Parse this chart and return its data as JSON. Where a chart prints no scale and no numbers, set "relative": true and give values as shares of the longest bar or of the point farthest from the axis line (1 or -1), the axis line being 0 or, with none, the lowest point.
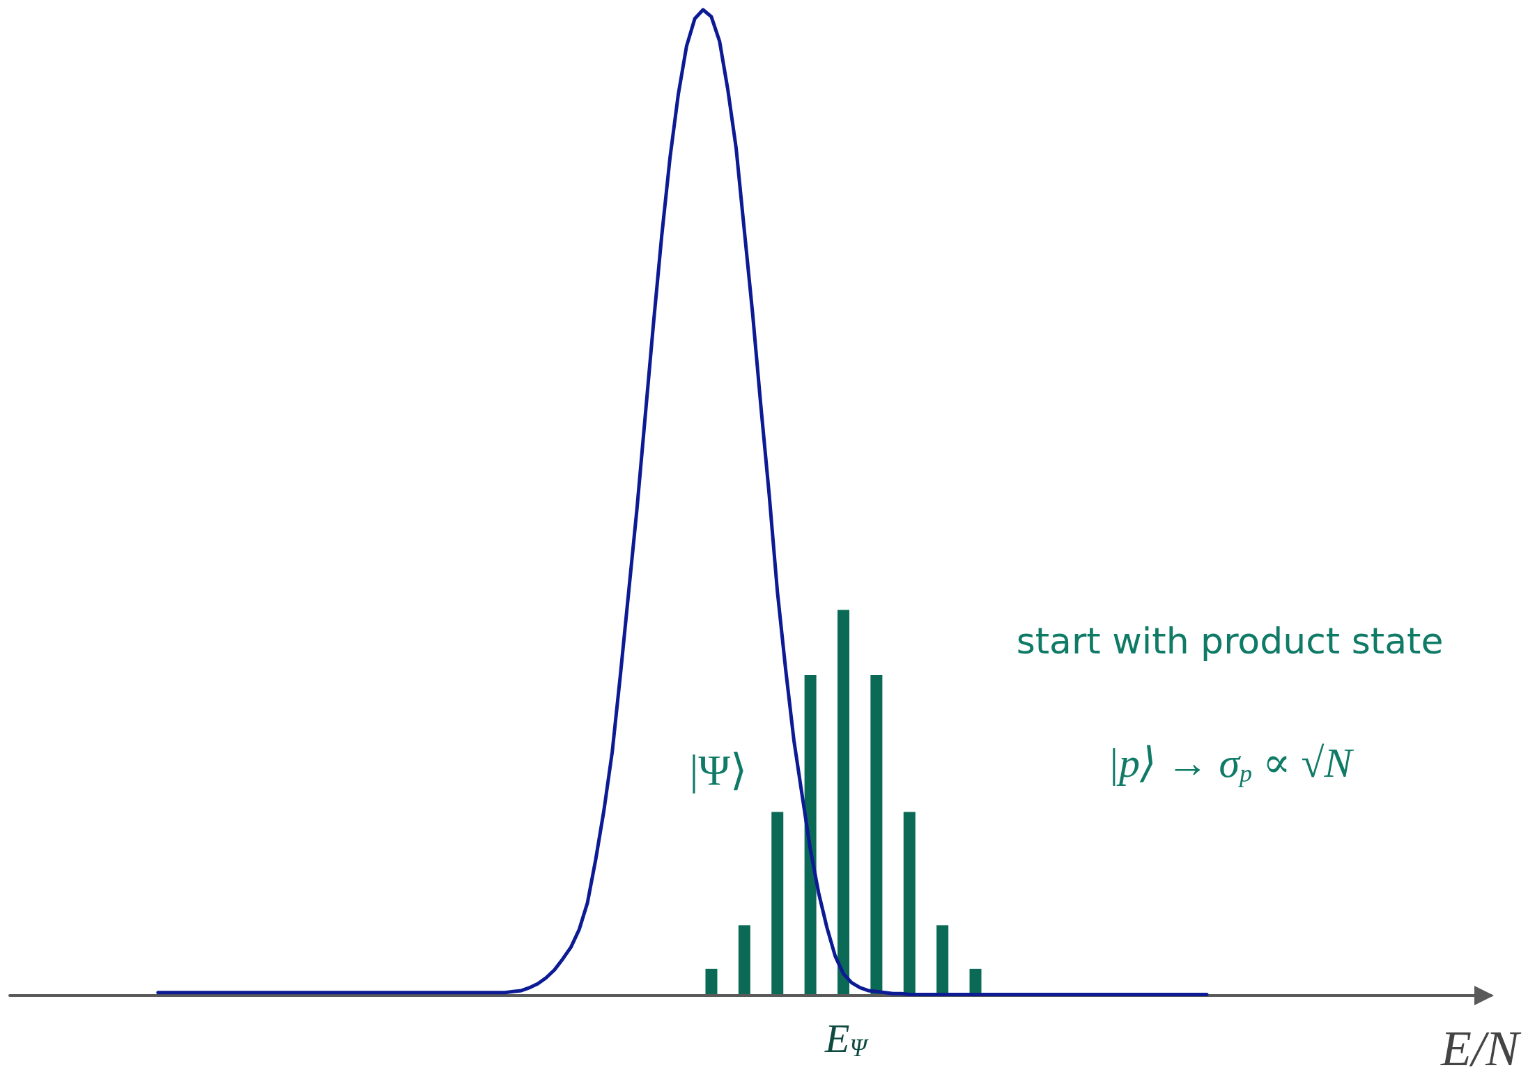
{
  "chart_data": [
    {
      "type": "line",
      "relative": true,
      "xlabel": "E/N",
      "color": "#0c1a94",
      "categories": [
        null,
        null,
        null,
        null,
        null,
        null,
        null,
        null,
        null,
        null,
        null,
        null,
        null,
        null,
        null,
        null,
        null,
        null,
        null,
        null,
        null,
        null,
        null,
        null,
        null,
        null,
        null,
        null,
        null,
        null,
        null,
        null,
        null,
        null,
        null,
        null,
        null,
        null,
        null,
        null,
        null,
        null,
        null,
        null,
        null,
        null,
        null,
        null,
        null,
        null,
        null,
        null,
        null,
        null,
        null,
        null,
        null,
        null,
        null,
        null,
        null,
        null,
        null,
        null,
        null,
        null,
        null,
        null,
        null,
        null,
        null,
        null,
        null,
        null,
        null,
        null,
        null,
        null,
        null,
        null,
        null,
        null,
        null,
        null,
        null,
        null,
        null,
        null,
        null,
        null,
        null,
        null,
        null,
        null,
        null,
        null,
        null,
        null,
        null,
        null,
        null,
        null,
        null,
        null,
        null,
        null,
        null,
        null,
        null,
        null,
        null,
        null,
        null,
        null,
        null,
        null,
        null,
        null,
        null,
        null,
        null,
        null,
        null,
        null,
        null,
        null,
        null,
        null
      ],
      "values": [
        0.003,
        0.003,
        0.003,
        0.003,
        0.003,
        0.003,
        0.003,
        0.003,
        0.003,
        0.003,
        0.003,
        0.003,
        0.003,
        0.003,
        0.003,
        0.003,
        0.003,
        0.003,
        0.003,
        0.003,
        0.003,
        0.003,
        0.003,
        0.003,
        0.003,
        0.003,
        0.003,
        0.003,
        0.003,
        0.003,
        0.003,
        0.003,
        0.003,
        0.003,
        0.003,
        0.003,
        0.003,
        0.003,
        0.003,
        0.003,
        0.003,
        0.003,
        0.003,
        0.004,
        0.005,
        0.008,
        0.012,
        0.018,
        0.026,
        0.037,
        0.049,
        0.067,
        0.094,
        0.138,
        0.188,
        0.247,
        0.326,
        0.41,
        0.494,
        0.588,
        0.682,
        0.771,
        0.85,
        0.914,
        0.963,
        0.991,
        1,
        0.993,
        0.968,
        0.919,
        0.86,
        0.776,
        0.692,
        0.598,
        0.509,
        0.41,
        0.331,
        0.259,
        0.203,
        0.148,
        0.104,
        0.069,
        0.04,
        0.022,
        0.013,
        0.008,
        0.005,
        0.004,
        0.003,
        0.002,
        0.002,
        0.001,
        0.001,
        0.001,
        0.001,
        0.001,
        0.001,
        0.001,
        0.001,
        0.001,
        0.001,
        0.001,
        0.001,
        0.001,
        0.001,
        0.001,
        0.001,
        0.001,
        0.001,
        0.001,
        0.001,
        0.001,
        0.001,
        0.001,
        0.001,
        0.001,
        0.001,
        0.001,
        0.001,
        0.001,
        0.001,
        0.001,
        0.001,
        0.001,
        0.001,
        0.001,
        0.001,
        0.001
      ],
      "annotations": [
        "|Ψ⟩"
      ]
    },
    {
      "type": "bar",
      "relative": true,
      "color": "#0b6a55",
      "categories": [
        null,
        null,
        null,
        null,
        null,
        null,
        null,
        null,
        null
      ],
      "values": [
        0.069,
        0.182,
        0.476,
        0.831,
        1,
        0.831,
        0.476,
        0.182,
        0.069
      ],
      "annotations": [
        "start with product state",
        "|p⟩ → σ$_{p}$ ∝ √N",
        "E$_{Ψ}$"
      ]
    }
  ]
}
